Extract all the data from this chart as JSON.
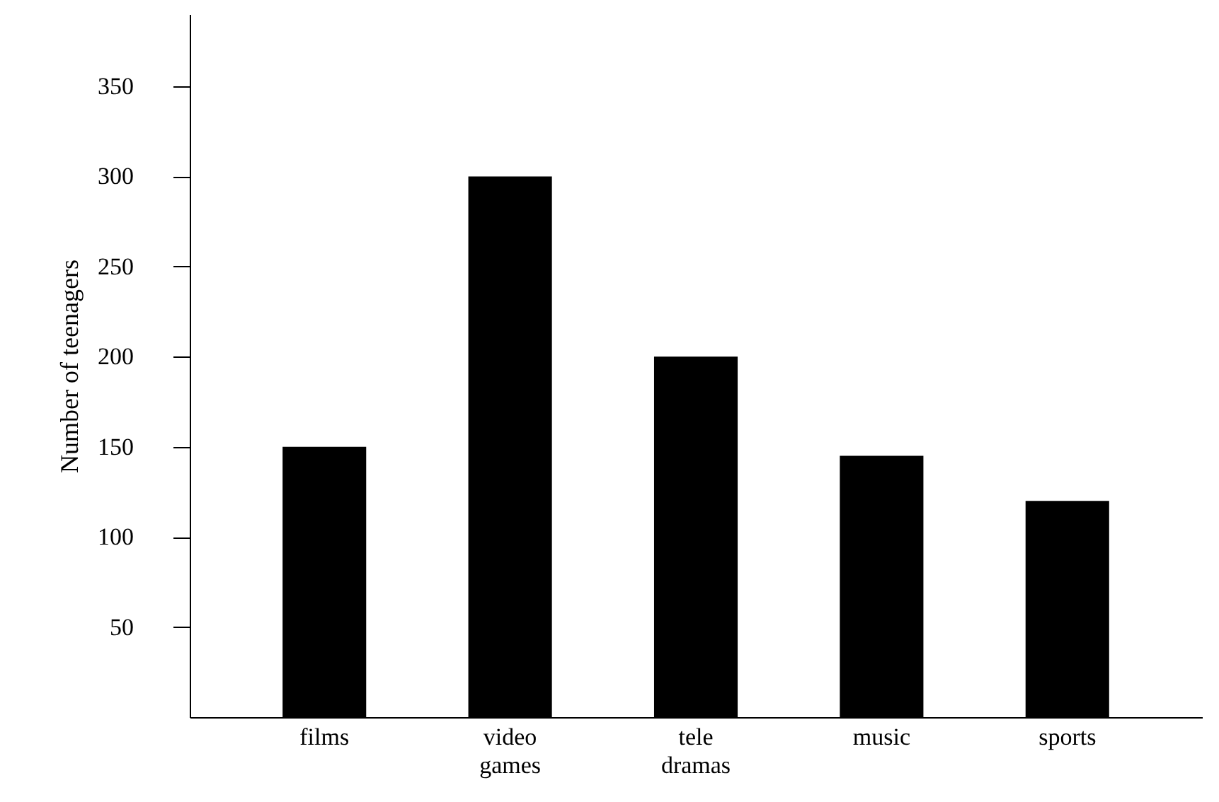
{
  "chart_data": {
    "type": "bar",
    "ylabel": "Number of teenagers",
    "categories": [
      "films",
      "video games",
      "tele dramas",
      "music",
      "sports"
    ],
    "values": [
      150,
      300,
      200,
      145,
      120
    ],
    "color": "#000000",
    "ylim": [
      0,
      390
    ],
    "yticks": [
      50,
      100,
      150,
      200,
      250,
      300,
      350
    ],
    "grid": false
  }
}
